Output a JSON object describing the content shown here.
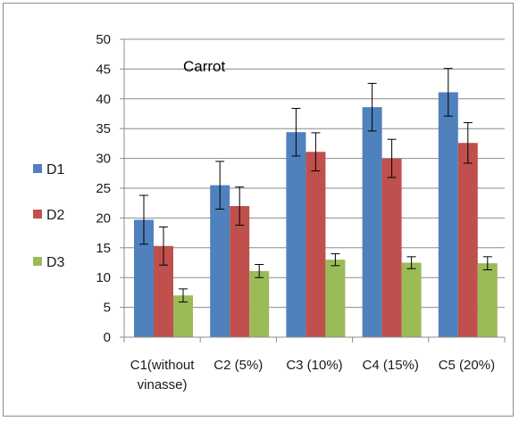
{
  "chart_data": {
    "type": "bar",
    "title": "Carrot",
    "xlabel": "",
    "ylabel": "",
    "categories": [
      "C1(without vinasse)",
      "C2 (5%)",
      "C3 (10%)",
      "C4 (15%)",
      "C5 (20%)"
    ],
    "category_lines": [
      [
        "C1(without",
        "vinasse)"
      ],
      [
        "C2 (5%)"
      ],
      [
        "C3 (10%)"
      ],
      [
        "C4 (15%)"
      ],
      [
        "C5 (20%)"
      ]
    ],
    "series": [
      {
        "name": "D1",
        "color": "#4f81bd",
        "values": [
          19.7,
          25.5,
          34.4,
          38.6,
          41.1
        ],
        "errors": [
          4.1,
          4.0,
          4.0,
          4.0,
          4.0
        ]
      },
      {
        "name": "D2",
        "color": "#c0504d",
        "values": [
          15.3,
          22.0,
          31.1,
          30.0,
          32.6
        ],
        "errors": [
          3.2,
          3.2,
          3.2,
          3.2,
          3.4
        ]
      },
      {
        "name": "D3",
        "color": "#9bbb59",
        "values": [
          7.0,
          11.1,
          13.0,
          12.5,
          12.4
        ],
        "errors": [
          1.1,
          1.1,
          1.0,
          1.0,
          1.1
        ]
      }
    ],
    "ylim": [
      0,
      50
    ],
    "yticks": [
      "0",
      "5",
      "10",
      "15",
      "20",
      "25",
      "30",
      "35",
      "40",
      "45",
      "50"
    ],
    "grid": true,
    "legend_position": "left"
  }
}
